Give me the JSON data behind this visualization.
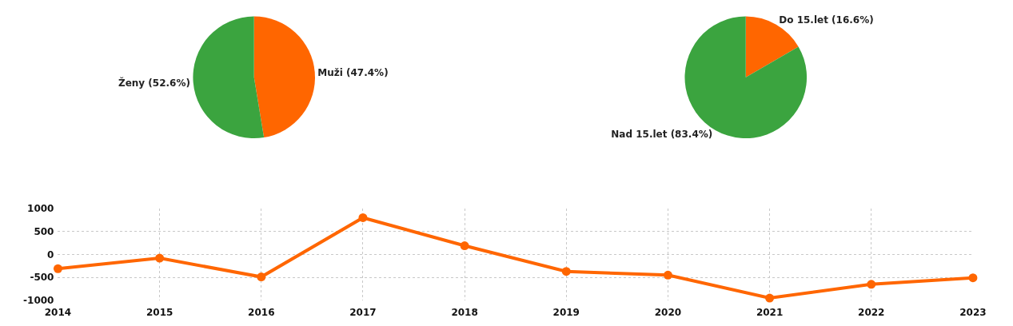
{
  "chart_data": [
    {
      "type": "pie",
      "categories": [
        "Muži",
        "Ženy"
      ],
      "values": [
        47.4,
        52.6
      ],
      "colors": [
        "#ff6600",
        "#3ba43f"
      ],
      "value_labels": [
        "(47.4%)",
        "(52.6%)"
      ]
    },
    {
      "type": "pie",
      "categories": [
        "Do 15.let",
        "Nad 15.let"
      ],
      "values": [
        16.6,
        83.4
      ],
      "colors": [
        "#ff6600",
        "#3ba43f"
      ],
      "value_labels": [
        "(16.6%)",
        "(83.4%)"
      ]
    },
    {
      "type": "line",
      "categories": [
        "2014",
        "2015",
        "2016",
        "2017",
        "2018",
        "2019",
        "2020",
        "2021",
        "2022",
        "2023"
      ],
      "series": [
        {
          "color": "#ff6600",
          "values": [
            -310,
            -80,
            -490,
            800,
            190,
            -370,
            -450,
            -950,
            -650,
            -510
          ]
        }
      ],
      "ylim": [
        -1000,
        1000
      ],
      "yticks": [
        -1000,
        -500,
        0,
        500,
        1000
      ],
      "grid": true,
      "marker": "circle",
      "line_style": "solid"
    }
  ]
}
